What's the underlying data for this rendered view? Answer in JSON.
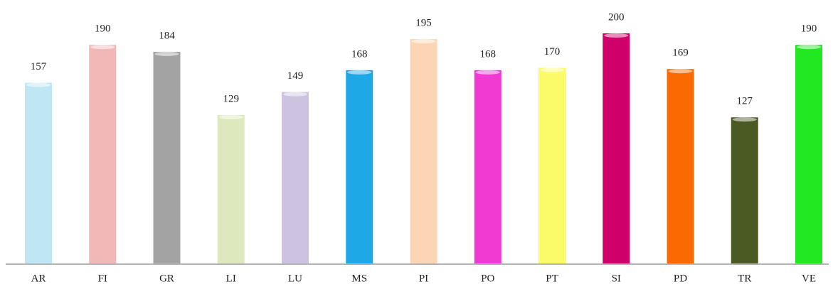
{
  "chart_data": {
    "type": "bar",
    "categories": [
      "AR",
      "FI",
      "GR",
      "LI",
      "LU",
      "MS",
      "PI",
      "PO",
      "PT",
      "SI",
      "PD",
      "TR",
      "VE"
    ],
    "values": [
      157,
      190,
      184,
      129,
      149,
      168,
      195,
      168,
      170,
      200,
      169,
      127,
      190
    ],
    "colors": [
      "#bfe6f3",
      "#f2b8b8",
      "#a3a3a3",
      "#dde8bc",
      "#cdc3e0",
      "#1ea8e6",
      "#fcd6b4",
      "#f03ad2",
      "#fbfb6a",
      "#d0006a",
      "#fa6a00",
      "#4a5a22",
      "#22e822"
    ]
  }
}
